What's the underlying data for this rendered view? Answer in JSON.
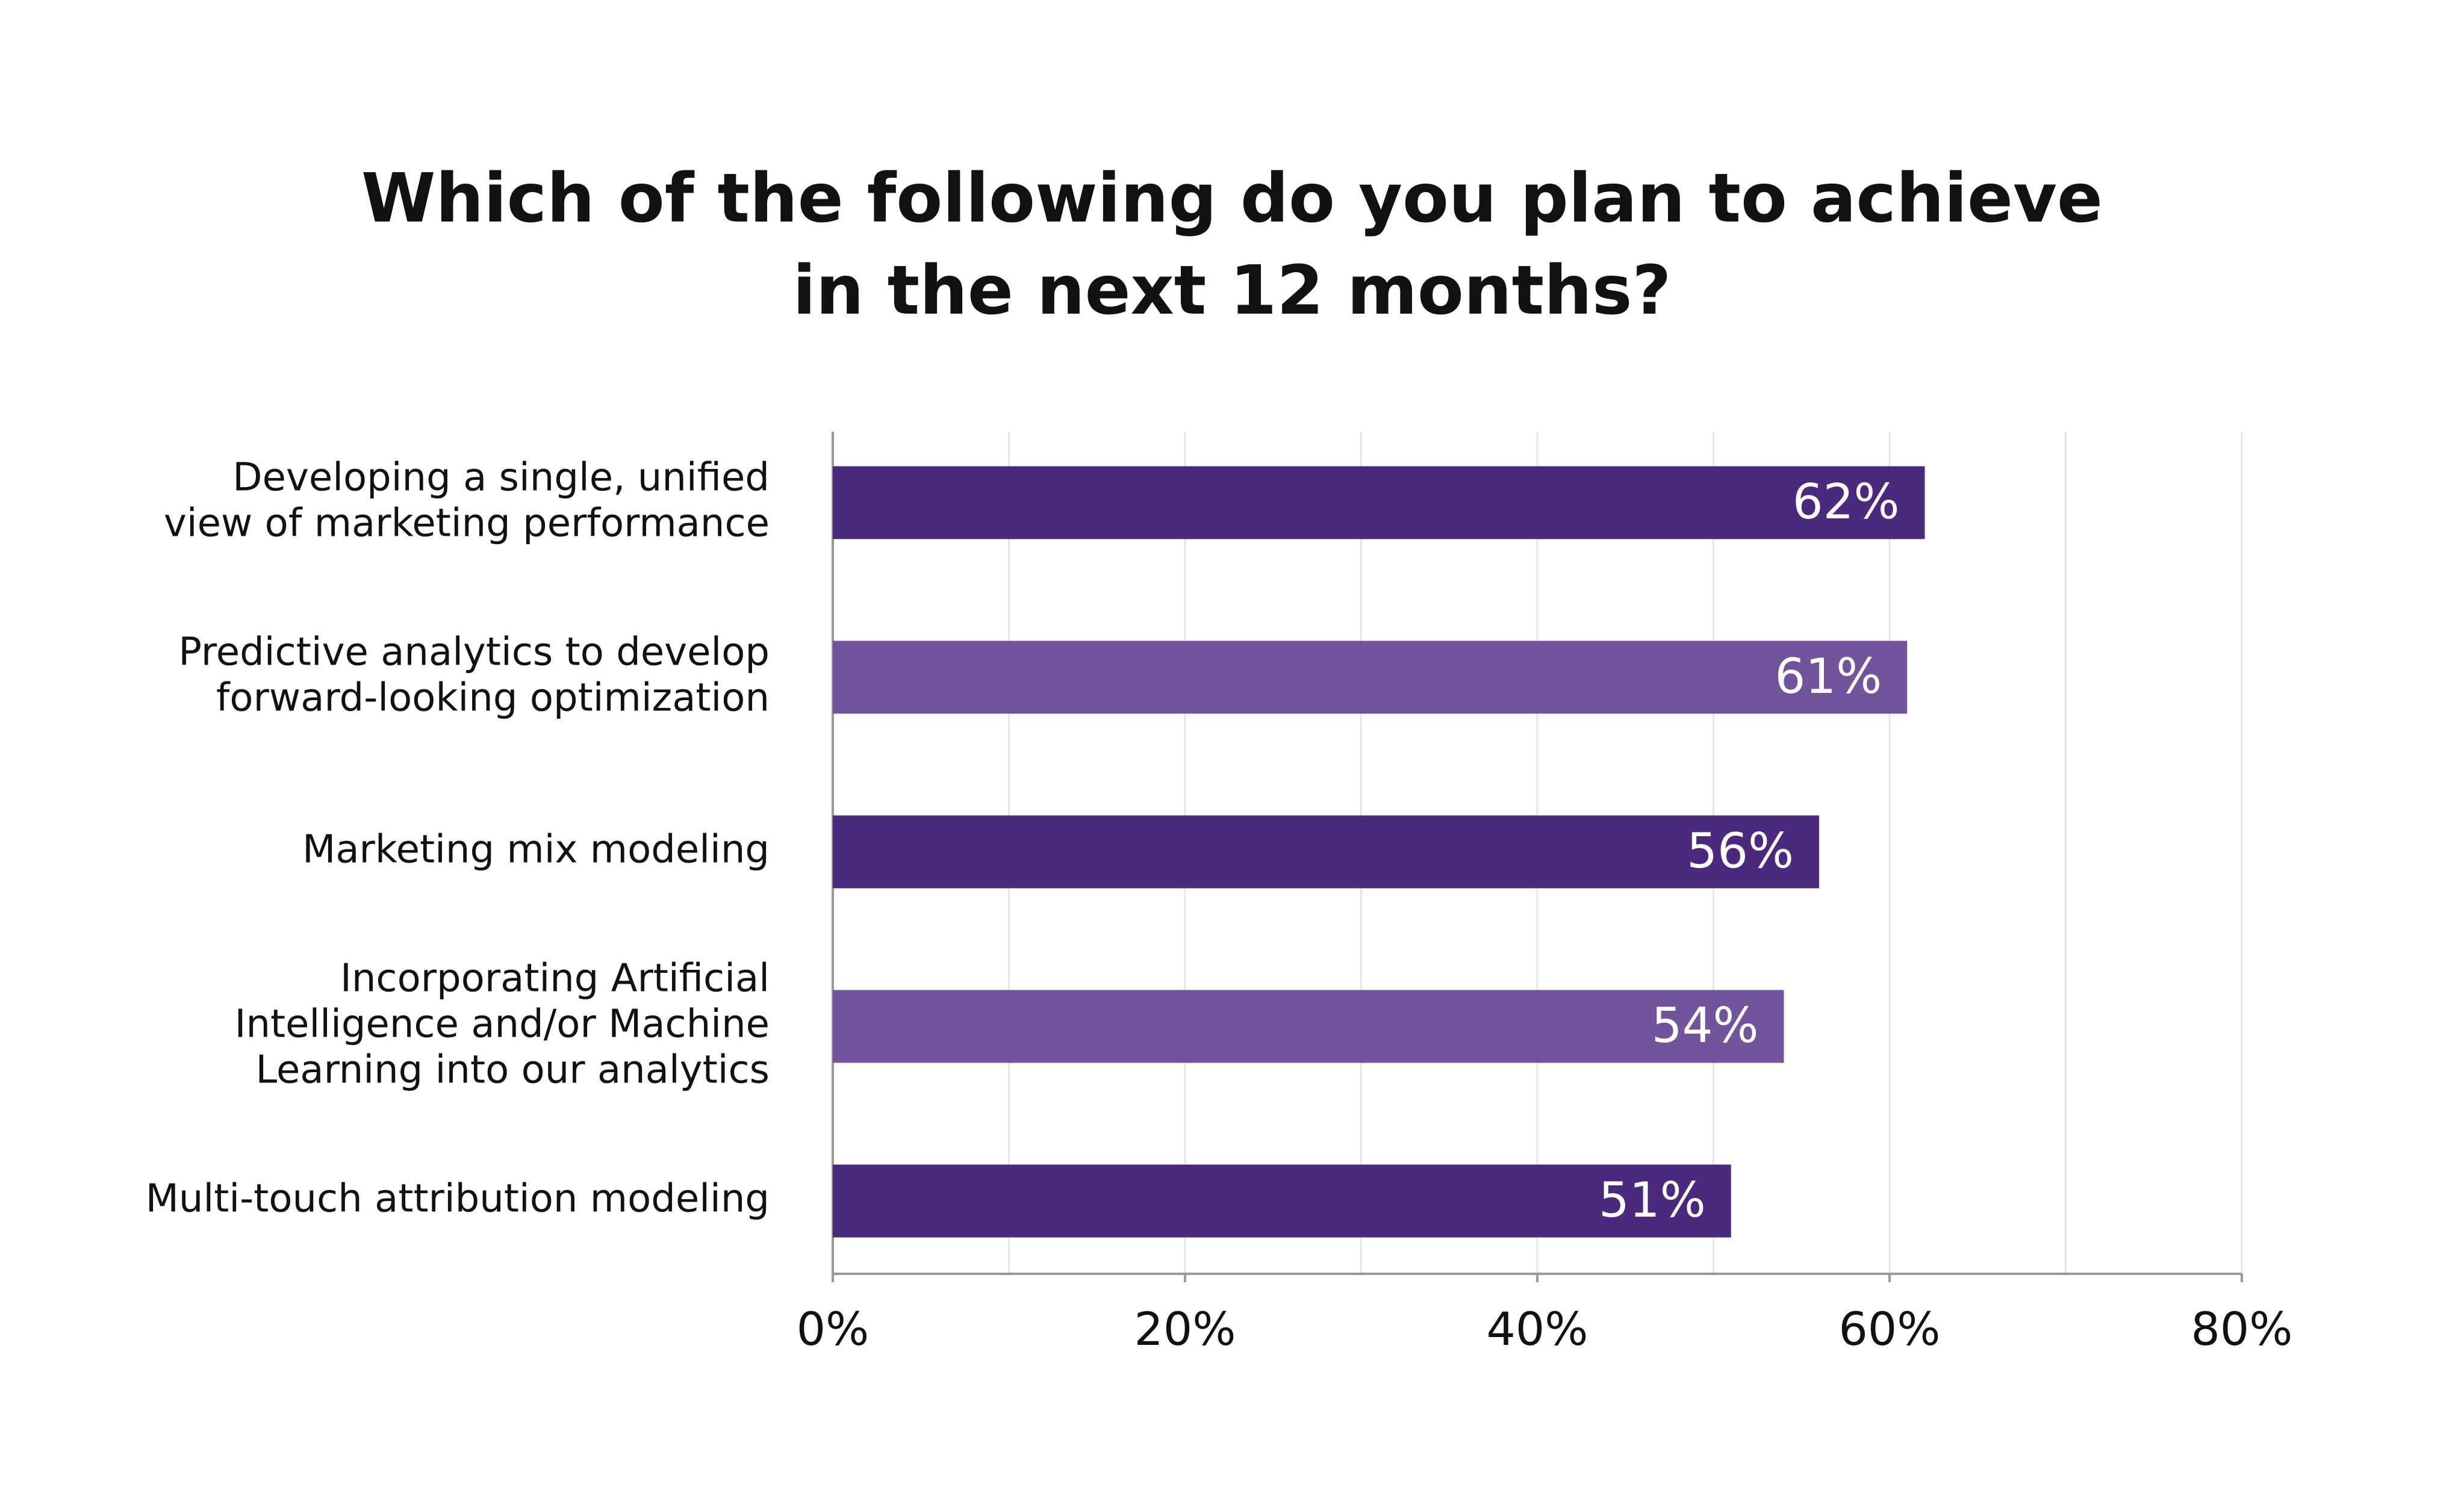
{
  "chart_data": {
    "type": "bar",
    "orientation": "horizontal",
    "title": [
      "Which of the following do you plan to achieve",
      "in the next 12 months?"
    ],
    "categories": [
      [
        "Developing a single, unified",
        "view of marketing performance"
      ],
      [
        "Predictive analytics to develop",
        "forward-looking optimization"
      ],
      [
        "Marketing mix modeling"
      ],
      [
        "Incorporating Artificial",
        "Intelligence and/or Machine",
        "Learning into our analytics"
      ],
      [
        "Multi-touch attribution modeling"
      ]
    ],
    "values": [
      62,
      61,
      56,
      54,
      51
    ],
    "value_labels": [
      "62%",
      "61%",
      "56%",
      "54%",
      "51%"
    ],
    "colors": [
      "#4b2a7d",
      "#71549b",
      "#4b2a7d",
      "#71549b",
      "#4b2a7d"
    ],
    "xlim": [
      0,
      80
    ],
    "xticks": [
      {
        "value": 0,
        "label": "0%"
      },
      {
        "value": 20,
        "label": "20%"
      },
      {
        "value": 40,
        "label": "40%"
      },
      {
        "value": 60,
        "label": "60%"
      },
      {
        "value": 80,
        "label": "80%"
      }
    ],
    "gridlines": [
      10,
      20,
      30,
      40,
      50,
      60,
      70,
      80
    ],
    "grid": true
  }
}
